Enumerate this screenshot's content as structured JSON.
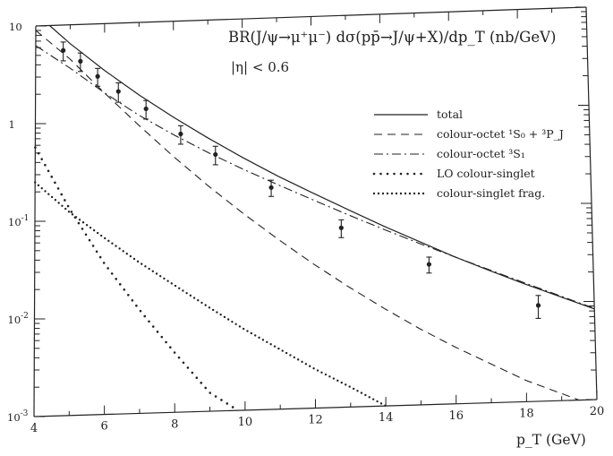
{
  "chart_data": {
    "type": "line",
    "title": "BR(J/ψ→μ⁺μ⁻) dσ(pp̄→J/ψ+X)/dp_T (nb/GeV)",
    "subtitle": "|η| < 0.6",
    "xlabel": "p_T (GeV)",
    "ylabel": "",
    "xlim": [
      4,
      20
    ],
    "ylim": [
      0.001,
      10
    ],
    "yscale": "log",
    "grid": false,
    "legend_position": "top-right",
    "x_ticks": [
      4,
      6,
      8,
      10,
      12,
      14,
      16,
      18,
      20
    ],
    "x_tick_labels": [
      "4",
      "6",
      "8",
      "10",
      "12",
      "14",
      "16",
      "18",
      "20"
    ],
    "y_ticks": [
      0.001,
      0.01,
      0.1,
      1,
      10
    ],
    "y_tick_labels": [
      {
        "base": "10",
        "exp": "-3"
      },
      {
        "base": "10",
        "exp": "-2"
      },
      {
        "base": "10",
        "exp": "-1"
      },
      {
        "base": "1",
        "exp": ""
      },
      {
        "base": "10",
        "exp": ""
      }
    ],
    "series": [
      {
        "name": "total",
        "style": "solid",
        "x": [
          4.4,
          5,
          6,
          7,
          8,
          9,
          10,
          11,
          12,
          13,
          14,
          15,
          16,
          17,
          18,
          19,
          20
        ],
        "y": [
          10.0,
          6.42,
          3.32,
          1.81,
          1.04,
          0.62,
          0.38,
          0.24,
          0.157,
          0.104,
          0.069,
          0.047,
          0.032,
          0.0225,
          0.016,
          0.0116,
          0.0084
        ]
      },
      {
        "name": "colour-octet ¹S₀ + ³P_J",
        "style": "dashed",
        "x": [
          4,
          5,
          6,
          7,
          8,
          9,
          10,
          11,
          12,
          13,
          14,
          15,
          16,
          17,
          18,
          19.5
        ],
        "y": [
          9.0,
          4.45,
          1.95,
          0.88,
          0.41,
          0.2,
          0.102,
          0.054,
          0.0295,
          0.0168,
          0.0099,
          0.006,
          0.0038,
          0.0025,
          0.00165,
          0.001
        ]
      },
      {
        "name": "colour-octet ³S₁",
        "style": "dashdot",
        "x": [
          4,
          5,
          6,
          7,
          8,
          9,
          10,
          11,
          12,
          13,
          14,
          15,
          16,
          17,
          18,
          19,
          20
        ],
        "y": [
          6.3,
          3.6,
          1.96,
          1.12,
          0.69,
          0.44,
          0.29,
          0.196,
          0.134,
          0.092,
          0.064,
          0.045,
          0.032,
          0.0229,
          0.0164,
          0.0118,
          0.0085
        ]
      },
      {
        "name": "LO colour-singlet",
        "style": "dotted",
        "x": [
          4,
          5,
          6,
          7,
          8,
          9,
          9.8
        ],
        "y": [
          0.57,
          0.13,
          0.035,
          0.0115,
          0.0041,
          0.00155,
          0.001
        ]
      },
      {
        "name": "colour-singlet frag.",
        "style": "dotted-dense",
        "x": [
          4,
          5,
          6,
          7,
          8,
          9,
          10,
          11,
          12,
          13,
          14
        ],
        "y": [
          0.25,
          0.12,
          0.064,
          0.035,
          0.02,
          0.0115,
          0.0067,
          0.0041,
          0.0025,
          0.0016,
          0.001
        ]
      }
    ],
    "data_points": {
      "x": [
        4.8,
        5.3,
        5.8,
        6.4,
        7.2,
        8.2,
        9.2,
        10.8,
        12.8,
        15.3,
        18.4
      ],
      "y": [
        5.5,
        4.2,
        2.9,
        2.0,
        1.3,
        0.7,
        0.42,
        0.185,
        0.068,
        0.027,
        0.0095
      ],
      "err": [
        1.2,
        0.9,
        0.6,
        0.45,
        0.28,
        0.15,
        0.09,
        0.035,
        0.014,
        0.005,
        0.0025
      ]
    }
  }
}
